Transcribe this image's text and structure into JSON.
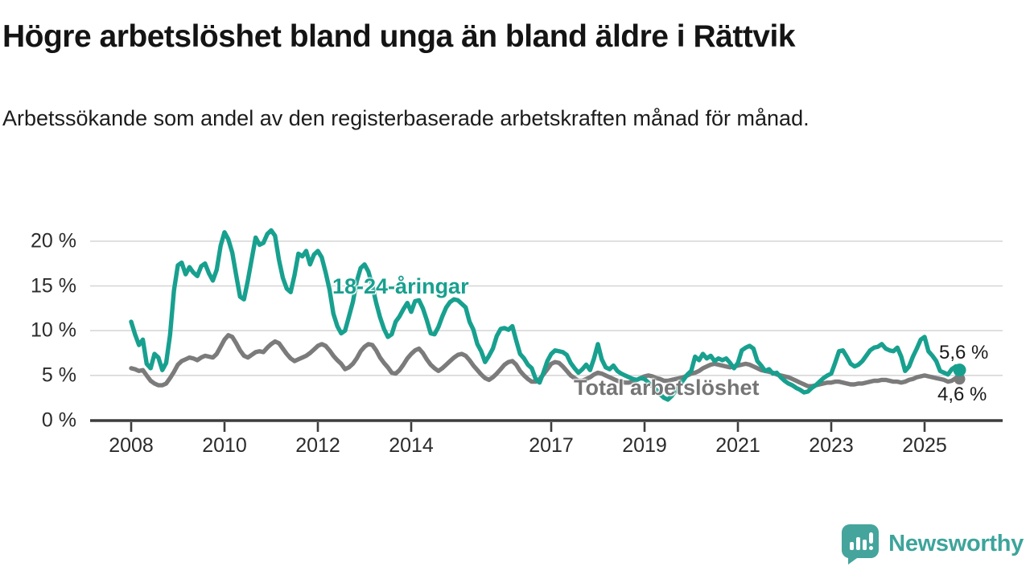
{
  "header": {
    "title": "Högre arbetslöshet bland unga än bland äldre i Rättvik",
    "subtitle": "Arbetssökande som andel av den registerbaserade arbetskraften månad för månad."
  },
  "chart_data": {
    "type": "line",
    "title": "Högre arbetslöshet bland unga än bland äldre i Rättvik",
    "xlabel": "",
    "ylabel": "Arbetssökande som andel av den registerbaserade arbetskraften",
    "grid": "horizontal-only",
    "legend_position": "inline-annotations",
    "x_start_year": 2008,
    "x_months_per_point": 1,
    "ylim": [
      0,
      22
    ],
    "y_ticks": [
      {
        "value": 20,
        "label": "20 %"
      },
      {
        "value": 15,
        "label": "15 %"
      },
      {
        "value": 10,
        "label": "10 %"
      },
      {
        "value": 5,
        "label": "5 %"
      },
      {
        "value": 0,
        "label": "0 %"
      }
    ],
    "x_ticks": [
      {
        "year": 2008,
        "label": "2008"
      },
      {
        "year": 2010,
        "label": "2010"
      },
      {
        "year": 2012,
        "label": "2012"
      },
      {
        "year": 2014,
        "label": "2014"
      },
      {
        "year": 2017,
        "label": "2017"
      },
      {
        "year": 2019,
        "label": "2019"
      },
      {
        "year": 2021,
        "label": "2021"
      },
      {
        "year": 2023,
        "label": "2023"
      },
      {
        "year": 2025,
        "label": "2025"
      }
    ],
    "series": [
      {
        "name": "18-24-åringar",
        "color": "#18a08f",
        "end_label": "5,6 %",
        "end_value": 5.6,
        "values": [
          11.0,
          9.6,
          8.4,
          9.0,
          6.3,
          5.8,
          7.4,
          7.0,
          5.6,
          6.4,
          9.5,
          14.5,
          17.3,
          17.6,
          16.3,
          17.1,
          16.5,
          16.1,
          17.2,
          17.5,
          16.4,
          15.6,
          16.8,
          19.5,
          21.0,
          20.2,
          18.7,
          16.2,
          13.8,
          13.5,
          15.6,
          18.0,
          20.4,
          19.6,
          19.8,
          20.8,
          21.2,
          20.6,
          17.9,
          15.9,
          14.7,
          14.3,
          16.2,
          18.6,
          18.3,
          18.9,
          17.4,
          18.5,
          18.9,
          18.2,
          16.5,
          14.6,
          11.9,
          10.5,
          9.7,
          10.0,
          11.6,
          13.2,
          15.5,
          17.0,
          17.4,
          16.6,
          15.0,
          13.1,
          11.5,
          10.2,
          9.3,
          9.6,
          11.0,
          11.6,
          12.4,
          13.1,
          12.1,
          13.3,
          13.4,
          12.5,
          11.2,
          9.7,
          9.6,
          10.4,
          11.6,
          12.6,
          13.2,
          13.5,
          13.4,
          13.0,
          12.6,
          11.0,
          10.1,
          8.5,
          7.7,
          6.5,
          7.2,
          8.0,
          9.4,
          10.2,
          10.3,
          10.1,
          10.5,
          8.9,
          7.4,
          6.9,
          6.2,
          5.8,
          4.6,
          4.2,
          5.3,
          6.6,
          7.4,
          7.8,
          7.7,
          7.6,
          7.3,
          6.4,
          5.8,
          5.3,
          5.7,
          6.2,
          5.6,
          6.9,
          8.5,
          6.8,
          5.9,
          5.7,
          6.1,
          5.5,
          5.2,
          5.0,
          4.8,
          4.6,
          4.5,
          4.7,
          4.6,
          4.2,
          3.8,
          3.4,
          2.9,
          2.5,
          2.3,
          2.7,
          3.3,
          3.9,
          4.5,
          5.1,
          5.5,
          7.1,
          6.7,
          7.4,
          6.9,
          7.2,
          6.6,
          6.9,
          6.7,
          6.9,
          6.4,
          5.8,
          6.4,
          7.8,
          8.1,
          8.3,
          8.0,
          6.6,
          6.1,
          5.5,
          5.7,
          5.2,
          5.3,
          4.8,
          4.4,
          4.1,
          3.9,
          3.6,
          3.4,
          3.1,
          3.2,
          3.6,
          3.9,
          4.3,
          4.7,
          5.0,
          5.2,
          6.4,
          7.7,
          7.8,
          7.1,
          6.3,
          6.0,
          6.2,
          6.6,
          7.2,
          7.8,
          8.1,
          8.2,
          8.5,
          8.0,
          7.8,
          7.7,
          8.1,
          7.1,
          5.5,
          6.0,
          7.1,
          8.0,
          9.0,
          9.3,
          7.7,
          7.2,
          6.6,
          5.5,
          5.3,
          5.1,
          5.7,
          6.0,
          5.6
        ]
      },
      {
        "name": "Total arbetslöshet",
        "color": "#7b7b7b",
        "end_label": "4,6 %",
        "end_value": 4.6,
        "values": [
          5.8,
          5.7,
          5.5,
          5.6,
          5.0,
          4.4,
          4.1,
          3.9,
          3.9,
          4.1,
          4.7,
          5.4,
          6.2,
          6.6,
          6.8,
          7.0,
          6.9,
          6.7,
          7.0,
          7.2,
          7.1,
          7.0,
          7.4,
          8.2,
          9.0,
          9.5,
          9.3,
          8.6,
          7.8,
          7.2,
          7.0,
          7.3,
          7.6,
          7.7,
          7.6,
          8.1,
          8.5,
          8.8,
          8.6,
          8.0,
          7.4,
          6.9,
          6.6,
          6.8,
          7.0,
          7.2,
          7.5,
          7.9,
          8.3,
          8.5,
          8.3,
          7.8,
          7.2,
          6.7,
          6.3,
          5.7,
          5.9,
          6.3,
          6.9,
          7.7,
          8.2,
          8.5,
          8.4,
          7.8,
          7.0,
          6.4,
          5.9,
          5.3,
          5.2,
          5.6,
          6.2,
          6.9,
          7.4,
          7.8,
          8.0,
          7.5,
          6.8,
          6.2,
          5.8,
          5.5,
          5.8,
          6.2,
          6.6,
          7.0,
          7.3,
          7.4,
          7.2,
          6.7,
          6.1,
          5.6,
          5.1,
          4.7,
          4.5,
          4.8,
          5.2,
          5.7,
          6.2,
          6.5,
          6.6,
          6.2,
          5.5,
          5.0,
          4.6,
          4.3,
          4.3,
          4.6,
          5.1,
          5.7,
          6.3,
          6.5,
          6.4,
          6.0,
          5.5,
          5.0,
          4.7,
          4.4,
          4.4,
          4.6,
          4.8,
          5.1,
          5.3,
          5.2,
          5.0,
          4.8,
          4.6,
          4.4,
          4.3,
          4.2,
          4.2,
          4.3,
          4.5,
          4.7,
          4.9,
          5.0,
          4.9,
          4.7,
          4.6,
          4.4,
          4.4,
          4.5,
          4.6,
          4.7,
          4.8,
          5.0,
          5.2,
          5.3,
          5.5,
          5.8,
          6.0,
          6.2,
          6.3,
          6.2,
          6.1,
          6.0,
          5.9,
          6.0,
          6.1,
          6.2,
          6.3,
          6.2,
          6.0,
          5.8,
          5.6,
          5.5,
          5.4,
          5.3,
          5.1,
          5.0,
          4.9,
          4.8,
          4.6,
          4.4,
          4.2,
          4.0,
          3.8,
          3.8,
          3.9,
          4.0,
          4.1,
          4.2,
          4.2,
          4.3,
          4.3,
          4.2,
          4.1,
          4.0,
          4.0,
          4.1,
          4.1,
          4.2,
          4.3,
          4.4,
          4.4,
          4.5,
          4.5,
          4.4,
          4.3,
          4.3,
          4.2,
          4.3,
          4.5,
          4.6,
          4.8,
          4.9,
          5.0,
          4.9,
          4.8,
          4.7,
          4.6,
          4.5,
          4.3,
          4.4,
          4.7,
          4.6
        ]
      }
    ]
  },
  "annotations": {
    "young_label": "18-24-åringar",
    "total_label": "Total arbetslöshet",
    "young_end": "5,6 %",
    "total_end": "4,6 %"
  },
  "footer": {
    "brand": "Newsworthy",
    "logo_icon": "newsworthy-speech-bubble-chart-icon"
  },
  "colors": {
    "young_line": "#18a08f",
    "total_line": "#7b7b7b",
    "total_label_text": "#757575",
    "grid": "#d8d8d8",
    "axis": "#3d3d3d",
    "brand_teal": "#3da49b"
  }
}
